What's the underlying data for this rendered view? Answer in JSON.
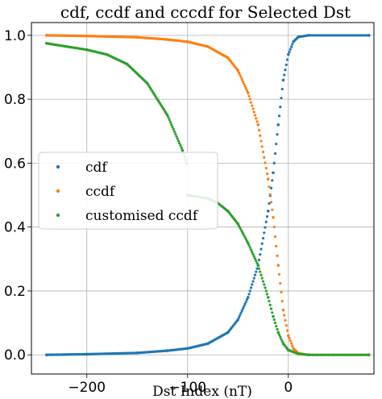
{
  "chart_data": {
    "type": "scatter",
    "title": "cdf, ccdf and cccdf for Selected Dst",
    "xlabel": "Dst Index (nT)",
    "ylabel": "",
    "xlim": [
      -255,
      85
    ],
    "ylim": [
      -0.06,
      1.04
    ],
    "xticks": [
      -200,
      -100,
      0
    ],
    "xtick_labels": [
      "−200",
      "−100",
      "0"
    ],
    "yticks": [
      0.0,
      0.2,
      0.4,
      0.6,
      0.8,
      1.0
    ],
    "ytick_labels": [
      "0.0",
      "0.2",
      "0.4",
      "0.6",
      "0.8",
      "1.0"
    ],
    "grid": true,
    "legend_position": "center-left",
    "series": [
      {
        "name": "cdf",
        "color": "#1f77b4",
        "points": [
          [
            -240,
            0.0
          ],
          [
            -200,
            0.002
          ],
          [
            -150,
            0.006
          ],
          [
            -120,
            0.013
          ],
          [
            -100,
            0.02
          ],
          [
            -80,
            0.035
          ],
          [
            -60,
            0.07
          ],
          [
            -50,
            0.11
          ],
          [
            -40,
            0.18
          ],
          [
            -30,
            0.28
          ],
          [
            -20,
            0.45
          ],
          [
            -15,
            0.57
          ],
          [
            -10,
            0.72
          ],
          [
            -5,
            0.86
          ],
          [
            0,
            0.94
          ],
          [
            5,
            0.98
          ],
          [
            10,
            0.995
          ],
          [
            20,
            1.0
          ],
          [
            80,
            1.0
          ]
        ]
      },
      {
        "name": "ccdf",
        "color": "#ff7f0e",
        "points": [
          [
            -240,
            1.0
          ],
          [
            -200,
            0.998
          ],
          [
            -150,
            0.994
          ],
          [
            -120,
            0.987
          ],
          [
            -100,
            0.98
          ],
          [
            -80,
            0.965
          ],
          [
            -60,
            0.93
          ],
          [
            -50,
            0.89
          ],
          [
            -40,
            0.82
          ],
          [
            -30,
            0.72
          ],
          [
            -20,
            0.55
          ],
          [
            -15,
            0.43
          ],
          [
            -10,
            0.28
          ],
          [
            -5,
            0.14
          ],
          [
            0,
            0.06
          ],
          [
            5,
            0.02
          ],
          [
            10,
            0.005
          ],
          [
            20,
            0.0
          ],
          [
            80,
            0.0
          ]
        ]
      },
      {
        "name": "customised ccdf",
        "color": "#2ca02c",
        "points": [
          [
            -240,
            0.975
          ],
          [
            -220,
            0.965
          ],
          [
            -200,
            0.955
          ],
          [
            -180,
            0.94
          ],
          [
            -160,
            0.91
          ],
          [
            -140,
            0.85
          ],
          [
            -120,
            0.75
          ],
          [
            -105,
            0.64
          ],
          [
            -101,
            0.6
          ],
          [
            -100,
            0.5
          ],
          [
            -80,
            0.49
          ],
          [
            -70,
            0.475
          ],
          [
            -60,
            0.45
          ],
          [
            -50,
            0.41
          ],
          [
            -40,
            0.35
          ],
          [
            -30,
            0.28
          ],
          [
            -20,
            0.18
          ],
          [
            -15,
            0.12
          ],
          [
            -10,
            0.07
          ],
          [
            -5,
            0.035
          ],
          [
            0,
            0.015
          ],
          [
            10,
            0.003
          ],
          [
            20,
            0.0
          ],
          [
            80,
            0.0
          ]
        ]
      }
    ]
  }
}
